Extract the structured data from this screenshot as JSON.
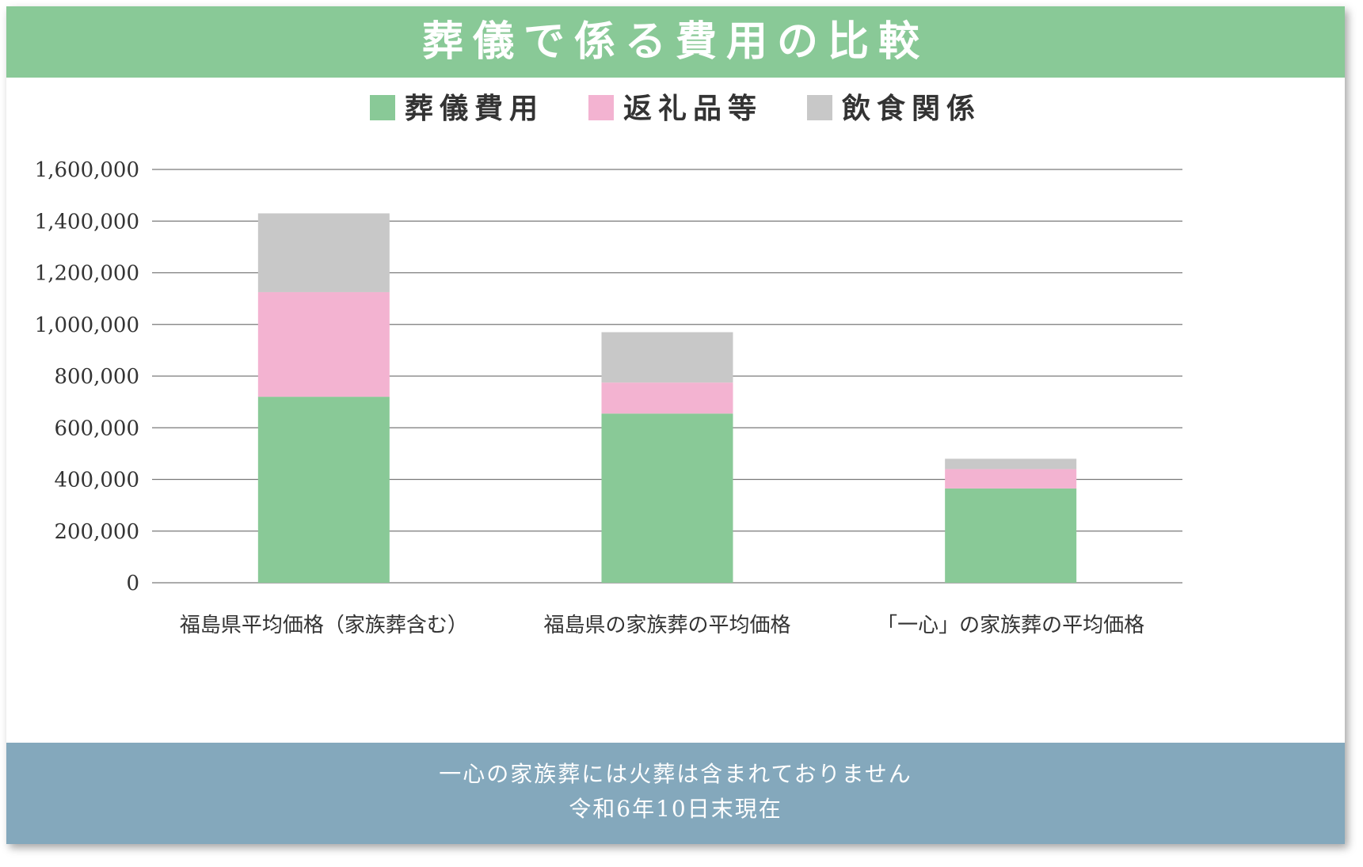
{
  "title": "葬儀で係る費用の比較",
  "colors": {
    "header_bg": "#89c997",
    "footer_bg": "#84a8bc",
    "grid": "#7a7a7a",
    "text": "#333333"
  },
  "chart_data": {
    "type": "bar",
    "stacked": true,
    "categories": [
      "福島県平均価格（家族葬含む）",
      "福島県の家族葬の平均価格",
      "「一心」の家族葬の平均価格"
    ],
    "series": [
      {
        "name": "葬儀費用",
        "color": "#89c997",
        "values": [
          720000,
          655000,
          365000
        ]
      },
      {
        "name": "返礼品等",
        "color": "#f3b3d1",
        "values": [
          405000,
          120000,
          75000
        ]
      },
      {
        "name": "飲食関係",
        "color": "#c8c8c8",
        "values": [
          305000,
          195000,
          40000
        ]
      }
    ],
    "ylim": [
      0,
      1600000
    ],
    "yticks": [
      "0",
      "200,000",
      "400,000",
      "600,000",
      "800,000",
      "1,000,000",
      "1,200,000",
      "1,400,000",
      "1,600,000"
    ],
    "legend_position": "top",
    "grid": true
  },
  "footer": {
    "line1": "一心の家族葬には火葬は含まれておりません",
    "line2": "令和6年10日末現在"
  }
}
